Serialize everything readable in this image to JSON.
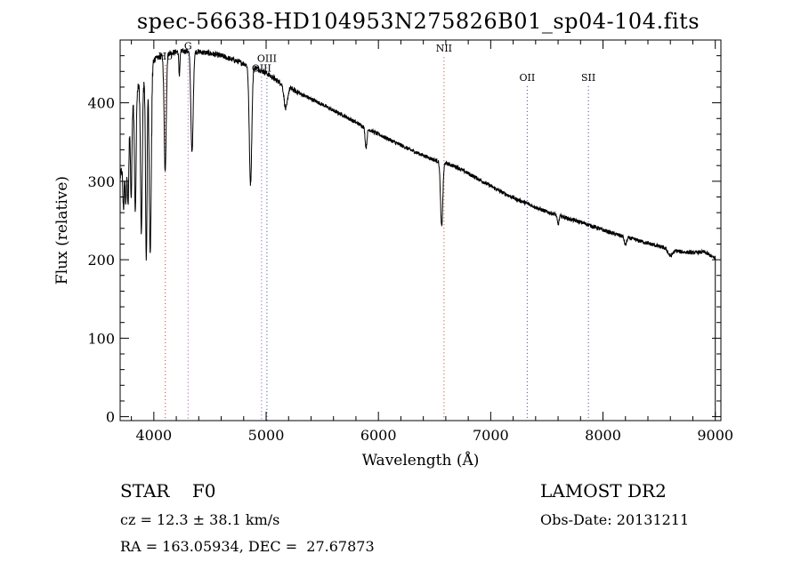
{
  "header": {
    "title": "spec-56638-HD104953N275826B01_sp04-104.fits"
  },
  "info": {
    "classification": "STAR    F0",
    "survey": "LAMOST DR2",
    "redshift": "cz = 12.3 ± 38.1 km/s",
    "obs_date": "Obs-Date: 20131211",
    "coords": "RA = 163.05934, DEC =  27.67873"
  },
  "chart_data": {
    "type": "line",
    "xlabel": "Wavelength (Å)",
    "ylabel": "Flux (relative)",
    "xlim": [
      3700,
      9050
    ],
    "ylim": [
      -5,
      480
    ],
    "xticks": [
      4000,
      5000,
      6000,
      7000,
      8000,
      9000
    ],
    "yticks": [
      0,
      100,
      200,
      300,
      400
    ],
    "continuum": [
      [
        3700,
        305
      ],
      [
        3760,
        345
      ],
      [
        3800,
        390
      ],
      [
        3850,
        420
      ],
      [
        3900,
        430
      ],
      [
        3950,
        445
      ],
      [
        4000,
        455
      ],
      [
        4100,
        462
      ],
      [
        4200,
        465
      ],
      [
        4300,
        466
      ],
      [
        4400,
        465
      ],
      [
        4500,
        463
      ],
      [
        4600,
        460
      ],
      [
        4700,
        455
      ],
      [
        4800,
        450
      ],
      [
        4900,
        445
      ],
      [
        5000,
        438
      ],
      [
        5100,
        428
      ],
      [
        5200,
        420
      ],
      [
        5300,
        412
      ],
      [
        5400,
        405
      ],
      [
        5500,
        398
      ],
      [
        5600,
        390
      ],
      [
        5700,
        383
      ],
      [
        5800,
        375
      ],
      [
        5900,
        367
      ],
      [
        6000,
        360
      ],
      [
        6100,
        353
      ],
      [
        6200,
        346
      ],
      [
        6300,
        339
      ],
      [
        6400,
        333
      ],
      [
        6500,
        327
      ],
      [
        6600,
        323
      ],
      [
        6700,
        318
      ],
      [
        6800,
        310
      ],
      [
        6900,
        302
      ],
      [
        7000,
        294
      ],
      [
        7100,
        286
      ],
      [
        7200,
        279
      ],
      [
        7300,
        273
      ],
      [
        7400,
        267
      ],
      [
        7500,
        261
      ],
      [
        7600,
        257
      ],
      [
        7700,
        252
      ],
      [
        7800,
        248
      ],
      [
        7900,
        243
      ],
      [
        8000,
        238
      ],
      [
        8100,
        233
      ],
      [
        8200,
        229
      ],
      [
        8300,
        225
      ],
      [
        8400,
        221
      ],
      [
        8500,
        217
      ],
      [
        8600,
        213
      ],
      [
        8700,
        210
      ],
      [
        8800,
        209
      ],
      [
        8900,
        210
      ],
      [
        8950,
        206
      ],
      [
        8980,
        203
      ]
    ],
    "absorption_lines": [
      {
        "wave": 3730,
        "depth": 60,
        "width": 6
      },
      {
        "wave": 3750,
        "depth": 70,
        "width": 6
      },
      {
        "wave": 3771,
        "depth": 90,
        "width": 6
      },
      {
        "wave": 3798,
        "depth": 110,
        "width": 6
      },
      {
        "wave": 3835,
        "depth": 150,
        "width": 7
      },
      {
        "wave": 3889,
        "depth": 190,
        "width": 8
      },
      {
        "wave": 3933,
        "depth": 240,
        "width": 7
      },
      {
        "wave": 3968,
        "depth": 240,
        "width": 9
      },
      {
        "wave": 4101,
        "depth": 150,
        "width": 9
      },
      {
        "wave": 4227,
        "depth": 30,
        "width": 5
      },
      {
        "wave": 4340,
        "depth": 130,
        "width": 10
      },
      {
        "wave": 4861,
        "depth": 150,
        "width": 11
      },
      {
        "wave": 5175,
        "depth": 30,
        "width": 15
      },
      {
        "wave": 5890,
        "depth": 25,
        "width": 8
      },
      {
        "wave": 6563,
        "depth": 82,
        "width": 10
      },
      {
        "wave": 7600,
        "depth": 12,
        "width": 8
      },
      {
        "wave": 8200,
        "depth": 10,
        "width": 10
      },
      {
        "wave": 8600,
        "depth": 8,
        "width": 20
      }
    ],
    "cutoff_wave": 9000,
    "line_markers": [
      {
        "label": "Hδ",
        "wave": 4102,
        "level": 455,
        "color": "#c0392b"
      },
      {
        "label": "G",
        "wave": 4305,
        "level": 468,
        "color": "#8e44ad"
      },
      {
        "label": "OIII",
        "wave": 4959,
        "level": 440,
        "color": "#8e44ad"
      },
      {
        "label": "OIII",
        "wave": 5007,
        "level": 452,
        "color": "#2c3e8e"
      },
      {
        "label": "NII",
        "wave": 6584,
        "level": 465,
        "color": "#c0392b"
      },
      {
        "label": "OII",
        "wave": 7325,
        "level": 428,
        "color": "#2c3e8e"
      },
      {
        "label": "SII",
        "wave": 7870,
        "level": 428,
        "color": "#2c3e8e"
      }
    ]
  }
}
